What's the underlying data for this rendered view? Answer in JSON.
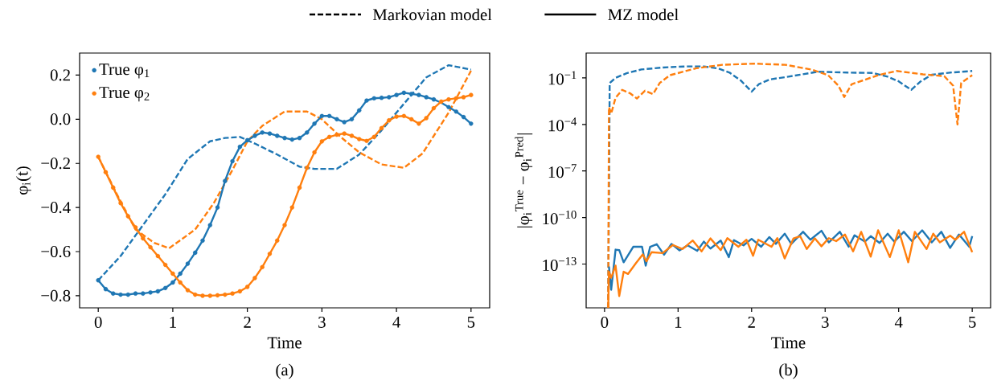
{
  "chart_data": [
    {
      "type": "line",
      "xlabel": "Time",
      "ylabel": "φ$_{i}$(t)",
      "annotations": [
        "(a)",
        "Markovian model",
        "MZ model"
      ],
      "xlim": [
        -0.25,
        5.25
      ],
      "ylim": [
        -0.855,
        0.3
      ],
      "xticks": [
        0,
        1,
        2,
        3,
        4,
        5
      ],
      "yticks": [
        {
          "value": -0.8,
          "label": "−0.8"
        },
        {
          "value": -0.6,
          "label": "−0.6"
        },
        {
          "value": -0.4,
          "label": "−0.4"
        },
        {
          "value": -0.2,
          "label": "−0.2"
        },
        {
          "value": 0.0,
          "label": "0.0"
        },
        0.2
      ],
      "legend": "top left",
      "x": [
        0,
        0.1,
        0.2,
        0.3,
        0.4,
        0.5,
        0.6,
        0.7,
        0.8,
        0.9,
        1.0,
        1.1,
        1.2,
        1.3,
        1.4,
        1.5,
        1.6,
        1.7,
        1.8,
        1.9,
        2.0,
        2.1,
        2.2,
        2.3,
        2.4,
        2.5,
        2.6,
        2.7,
        2.8,
        2.9,
        3.0,
        3.1,
        3.2,
        3.3,
        3.4,
        3.5,
        3.6,
        3.7,
        3.8,
        3.9,
        4.0,
        4.1,
        4.2,
        4.3,
        4.4,
        4.5,
        4.6,
        4.7,
        4.8,
        4.9,
        5.0
      ],
      "series": [
        {
          "color": "#1f77b4",
          "line_style": "dashed",
          "x": [
            0,
            0.3,
            0.6,
            0.9,
            1.2,
            1.5,
            1.7,
            1.9,
            2.1,
            2.4,
            2.7,
            2.9,
            3.2,
            3.5,
            3.8,
            4.1,
            4.4,
            4.7,
            5.0
          ],
          "values": [
            -0.73,
            -0.62,
            -0.48,
            -0.34,
            -0.18,
            -0.1,
            -0.085,
            -0.08,
            -0.11,
            -0.16,
            -0.215,
            -0.225,
            -0.225,
            -0.16,
            -0.05,
            0.07,
            0.19,
            0.245,
            0.225
          ]
        },
        {
          "color": "#ff7f0e",
          "line_style": "dashed",
          "x": [
            0,
            0.25,
            0.5,
            0.75,
            0.95,
            1.3,
            1.55,
            1.8,
            2.0,
            2.2,
            2.5,
            2.8,
            3.0,
            3.25,
            3.5,
            3.8,
            4.1,
            4.35,
            4.7,
            5.0
          ],
          "values": [
            -0.17,
            -0.34,
            -0.5,
            -0.56,
            -0.585,
            -0.5,
            -0.38,
            -0.23,
            -0.1,
            -0.03,
            0.035,
            0.035,
            0.0,
            -0.08,
            -0.15,
            -0.205,
            -0.22,
            -0.155,
            0.03,
            0.22
          ]
        },
        {
          "color": "#1f77b4",
          "line_style": "solid",
          "values": [
            -0.73,
            -0.77,
            -0.79,
            -0.795,
            -0.795,
            -0.79,
            -0.79,
            -0.785,
            -0.78,
            -0.765,
            -0.74,
            -0.7,
            -0.655,
            -0.605,
            -0.55,
            -0.48,
            -0.4,
            -0.28,
            -0.19,
            -0.125,
            -0.095,
            -0.075,
            -0.06,
            -0.065,
            -0.075,
            -0.085,
            -0.092,
            -0.085,
            -0.06,
            -0.02,
            0.015,
            0.015,
            0.0,
            -0.013,
            0.0,
            0.04,
            0.085,
            0.095,
            0.097,
            0.1,
            0.11,
            0.12,
            0.115,
            0.11,
            0.1,
            0.09,
            0.075,
            0.055,
            0.035,
            0.01,
            -0.02
          ]
        },
        {
          "color": "#ff7f0e",
          "line_style": "solid",
          "values": [
            -0.17,
            -0.24,
            -0.31,
            -0.38,
            -0.44,
            -0.49,
            -0.54,
            -0.58,
            -0.62,
            -0.66,
            -0.7,
            -0.74,
            -0.775,
            -0.795,
            -0.8,
            -0.8,
            -0.798,
            -0.795,
            -0.79,
            -0.78,
            -0.76,
            -0.72,
            -0.67,
            -0.61,
            -0.55,
            -0.48,
            -0.4,
            -0.31,
            -0.22,
            -0.15,
            -0.1,
            -0.08,
            -0.07,
            -0.065,
            -0.075,
            -0.09,
            -0.098,
            -0.08,
            -0.04,
            -0.005,
            0.012,
            0.015,
            0.0,
            -0.02,
            0.005,
            0.05,
            0.08,
            0.09,
            0.095,
            0.1,
            0.11
          ]
        },
        {
          "type": "scatter",
          "marker": "circle",
          "name": "True φ$_{1}$",
          "color": "#1f77b4",
          "values": [
            -0.73,
            -0.77,
            -0.79,
            -0.795,
            -0.795,
            -0.79,
            -0.79,
            -0.785,
            -0.78,
            -0.765,
            -0.74,
            -0.7,
            -0.655,
            -0.605,
            -0.55,
            -0.48,
            -0.4,
            -0.28,
            -0.19,
            -0.125,
            -0.095,
            -0.075,
            -0.06,
            -0.065,
            -0.075,
            -0.085,
            -0.092,
            -0.085,
            -0.06,
            -0.02,
            0.015,
            0.015,
            0.0,
            -0.013,
            0.0,
            0.04,
            0.085,
            0.095,
            0.097,
            0.1,
            0.11,
            0.12,
            0.115,
            0.11,
            0.1,
            0.09,
            null,
            0.055,
            0.035,
            0.01,
            -0.02
          ]
        },
        {
          "type": "scatter",
          "marker": "circle",
          "name": "True φ$_{2}$",
          "color": "#ff7f0e",
          "values": [
            -0.17,
            -0.24,
            -0.31,
            -0.38,
            -0.44,
            -0.49,
            -0.54,
            -0.58,
            -0.62,
            -0.66,
            -0.7,
            -0.74,
            -0.775,
            -0.795,
            -0.8,
            -0.8,
            -0.798,
            -0.795,
            -0.79,
            -0.78,
            -0.76,
            -0.72,
            -0.67,
            -0.61,
            -0.55,
            -0.48,
            -0.4,
            -0.31,
            -0.22,
            -0.15,
            -0.1,
            -0.08,
            -0.07,
            -0.065,
            -0.075,
            -0.09,
            -0.098,
            -0.08,
            -0.04,
            -0.005,
            0.012,
            0.015,
            0.0,
            -0.02,
            0.005,
            0.05,
            0.08,
            0.09,
            0.095,
            0.1,
            0.11
          ]
        }
      ]
    },
    {
      "type": "line",
      "log": "y",
      "xlabel": "Time",
      "ylabel": "|φ$_{i}$$^{True}$ − φ$_{i}$$^{Pred}$|",
      "annotations": [
        "(b)"
      ],
      "xlim": [
        -0.25,
        5.25
      ],
      "ylim": [
        1.5e-16,
        4
      ],
      "xticks": [
        0,
        1,
        2,
        3,
        4,
        5
      ],
      "yticks": [
        {
          "value": 1e-13,
          "label": "10$^{−13}$"
        },
        {
          "value": 1e-10,
          "label": "10$^{−10}$"
        },
        {
          "value": 1e-07,
          "label": "10$^{−7}$"
        },
        {
          "value": 0.0001,
          "label": "10$^{−4}$"
        },
        {
          "value": 0.1,
          "label": "10$^{−1}$"
        }
      ],
      "series": [
        {
          "color": "#1f77b4",
          "line_style": "dashed",
          "x": [
            0.05,
            0.07,
            0.15,
            0.3,
            0.5,
            0.8,
            1.1,
            1.35,
            1.55,
            1.7,
            1.85,
            2.0,
            2.1,
            2.25,
            2.5,
            2.9,
            3.3,
            3.65,
            3.85,
            4.0,
            4.17,
            4.3,
            4.45,
            4.7,
            5.0
          ],
          "values": [
            1.5e-16,
            0.047,
            0.1,
            0.2,
            0.35,
            0.47,
            0.55,
            0.55,
            0.4,
            0.22,
            0.07,
            0.013,
            0.04,
            0.08,
            0.12,
            0.25,
            0.22,
            0.21,
            0.12,
            0.06,
            0.017,
            0.06,
            0.16,
            0.22,
            0.28
          ]
        },
        {
          "color": "#ff7f0e",
          "line_style": "dashed",
          "x": [
            0.05,
            0.06,
            0.09,
            0.15,
            0.24,
            0.35,
            0.44,
            0.55,
            0.66,
            0.75,
            0.89,
            1.25,
            1.6,
            2.04,
            2.46,
            2.82,
            3.04,
            3.18,
            3.26,
            3.36,
            3.72,
            3.97,
            4.33,
            4.62,
            4.74,
            4.8,
            4.85,
            5.0
          ],
          "values": [
            1.5e-16,
            0.0013,
            0.0005,
            0.0052,
            0.017,
            0.01,
            0.0047,
            0.015,
            0.009,
            0.047,
            0.15,
            0.42,
            0.7,
            0.83,
            0.7,
            0.34,
            0.15,
            0.032,
            0.0059,
            0.039,
            0.15,
            0.28,
            0.17,
            0.13,
            0.032,
            0.0001,
            0.047,
            0.15
          ]
        },
        {
          "color": "#1f77b4",
          "line_style": "solid",
          "x": [
            0.06,
            0.09,
            0.15,
            0.2,
            0.26,
            0.39,
            0.51,
            0.56,
            0.62,
            0.71,
            0.81,
            0.91,
            1.02,
            1.13,
            1.26,
            1.35,
            1.44,
            1.58,
            1.69,
            1.76,
            1.89,
            2.0,
            2.13,
            2.24,
            2.33,
            2.45,
            2.54,
            2.7,
            2.8,
            2.95,
            3.05,
            3.2,
            3.32,
            3.4,
            3.54,
            3.62,
            3.74,
            3.85,
            3.94,
            4.07,
            4.18,
            4.32,
            4.45,
            4.58,
            4.7,
            4.82,
            4.96,
            5.0
          ],
          "values": [
            6.9e-14,
            2.2e-15,
            8.5e-13,
            7.9e-13,
            1.3e-13,
            1.3e-12,
            1.3e-12,
            7.9e-14,
            1.3e-12,
            1.9e-12,
            4e-13,
            2e-12,
            7.6e-13,
            1.6e-12,
            7.1e-13,
            2.8e-12,
            1e-12,
            3.3e-12,
            2.8e-13,
            3.5e-12,
            1.6e-12,
            4.2e-12,
            1.3e-12,
            5.5e-12,
            2e-12,
            9.1e-12,
            2e-12,
            1.2e-11,
            3.7e-12,
            1.4e-11,
            2.5e-12,
            1.2e-11,
            1.3e-12,
            7.2e-12,
            2.8e-12,
            6.3e-12,
            2.3e-12,
            9.1e-12,
            2.8e-12,
            1.2e-11,
            3e-12,
            1.5e-11,
            2.5e-12,
            1.2e-11,
            1.1e-12,
            8.1e-12,
            1.3e-12,
            6.3e-12
          ]
        },
        {
          "color": "#ff7f0e",
          "line_style": "solid",
          "x": [
            0.05,
            0.06,
            0.09,
            0.15,
            0.2,
            0.26,
            0.32,
            0.43,
            0.52,
            0.57,
            0.64,
            0.79,
            0.93,
            1.06,
            1.2,
            1.32,
            1.44,
            1.58,
            1.67,
            1.82,
            1.93,
            2.02,
            2.09,
            2.27,
            2.35,
            2.45,
            2.57,
            2.66,
            2.75,
            2.86,
            2.95,
            3.05,
            3.15,
            3.27,
            3.38,
            3.49,
            3.62,
            3.72,
            3.88,
            4.0,
            4.13,
            4.22,
            4.38,
            4.47,
            4.56,
            4.7,
            4.77,
            4.89,
            5.0
          ],
          "values": [
            1.5e-16,
            3.2e-14,
            1.3e-14,
            7.9e-14,
            8.7e-16,
            3.2e-14,
            2.3e-14,
            1.2e-13,
            4.2e-13,
            1.5e-13,
            5.8e-13,
            5.1e-13,
            1.7e-12,
            9.3e-13,
            3.3e-12,
            6.6e-13,
            4.5e-12,
            7.9e-13,
            4.7e-12,
            1.3e-12,
            3.7e-12,
            3.4e-13,
            3.7e-12,
            1.3e-12,
            4.7e-12,
            2.3e-13,
            4.5e-12,
            6.3e-12,
            9.3e-13,
            4.5e-12,
            1.4e-12,
            4.7e-12,
            3e-12,
            8.1e-12,
            6.6e-13,
            1.2e-11,
            3e-13,
            1.5e-11,
            2.8e-13,
            1.5e-11,
            1.3e-13,
            1.2e-11,
            9.3e-13,
            9.1e-12,
            2.5e-12,
            6.8e-12,
            3.7e-12,
            1.2e-11,
            5.8e-13
          ]
        }
      ]
    }
  ]
}
